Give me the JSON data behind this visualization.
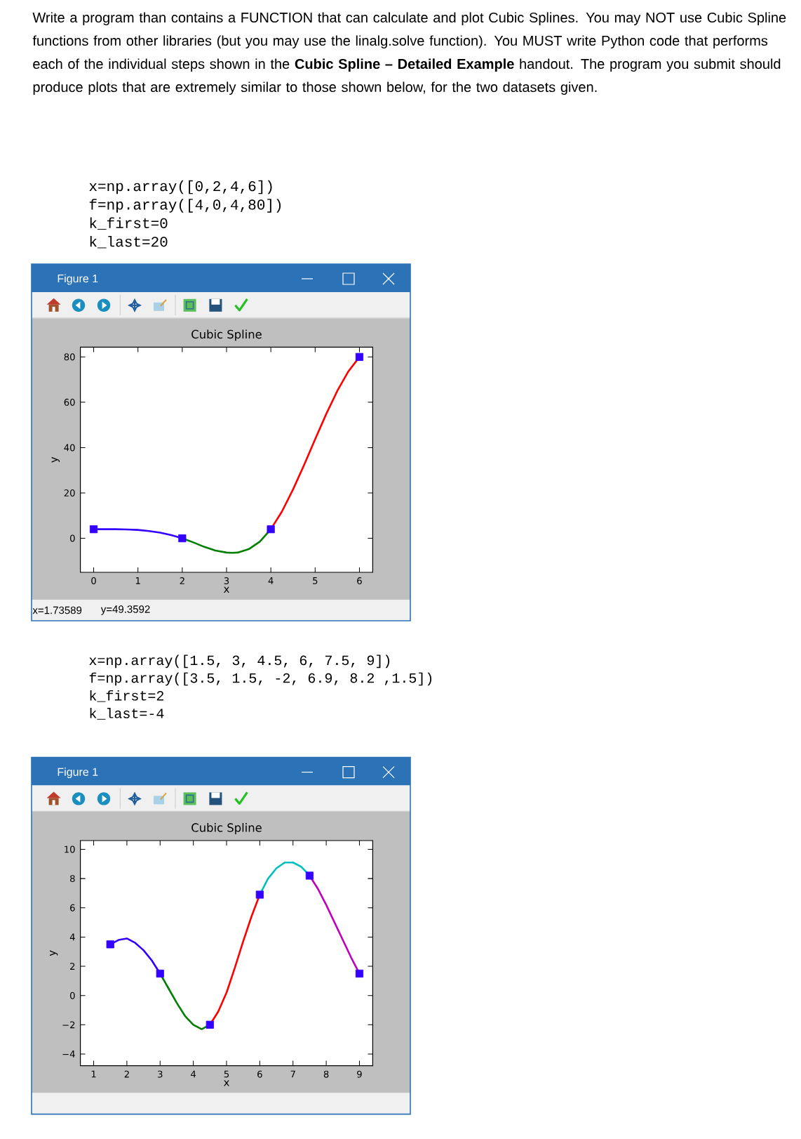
{
  "chart_data": [
    {
      "type": "line",
      "title": "Cubic Spline",
      "xlabel": "x",
      "ylabel": "y",
      "xlim": [
        -0.3,
        6.3
      ],
      "ylim": [
        -15,
        84.3
      ],
      "xticks": [
        0,
        1,
        2,
        3,
        4,
        5,
        6
      ],
      "yticks": [
        0,
        20,
        40,
        60,
        80
      ],
      "series": [
        {
          "type": "line",
          "color": "#3300ff",
          "x": [
            0,
            0.25,
            0.5,
            0.75,
            1,
            1.25,
            1.5,
            1.75,
            2
          ],
          "values": [
            4,
            4,
            4,
            3.9,
            3.7,
            3.2,
            2.5,
            1.4,
            0
          ]
        },
        {
          "type": "line",
          "color": "#008000",
          "x": [
            2,
            2.25,
            2.5,
            2.75,
            3,
            3.125,
            3.25,
            3.5,
            3.75,
            4
          ],
          "values": [
            0,
            -1.8,
            -3.8,
            -5.4,
            -6.3,
            -6.4,
            -6.3,
            -4.8,
            -1.5,
            4
          ]
        },
        {
          "type": "line",
          "color": "#ff0000",
          "x": [
            4,
            4.25,
            4.5,
            4.75,
            5,
            5.25,
            5.5,
            5.75,
            6
          ],
          "values": [
            4,
            11.8,
            21.5,
            32.3,
            43.7,
            54.8,
            65,
            73.6,
            80
          ]
        },
        {
          "type": "scatter",
          "color": "#3300ff",
          "marker": "square",
          "x": [
            0,
            2,
            4,
            6
          ],
          "values": [
            4,
            0,
            4,
            80
          ]
        }
      ],
      "annotations": [
        "Write a program than contains a FUNCTION that can calculate and plot Cubic Splines.  You may NOT use Cubic Spline functions from other libraries (but you may use the linalg.solve function).  You MUST write Python code that performs each of the individual steps shown in the **Cubic Spline – Detailed Example** handout.  The program you submit should produce plots that are extremely similar to those shown below, for the two datasets given.",
        "x=np.array([0,2,4,6])",
        "f=np.array([4,0,4,80])",
        "k_first=0",
        "k_last=20",
        "Figure 1",
        "x=1.73589",
        "y=49.3592"
      ]
    },
    {
      "type": "line",
      "title": "Cubic Spline",
      "xlabel": "x",
      "ylabel": "y",
      "xlim": [
        0.6,
        9.4
      ],
      "ylim": [
        -4.8,
        10.6
      ],
      "xticks": [
        1,
        2,
        3,
        4,
        5,
        6,
        7,
        8,
        9
      ],
      "yticks": [
        {
          "value": -4,
          "label": "−4"
        },
        {
          "value": -2,
          "label": "−2"
        },
        0,
        2,
        4,
        6,
        8,
        10
      ],
      "series": [
        {
          "type": "line",
          "color": "#3300ff",
          "x": [
            1.5,
            1.75,
            2,
            2.25,
            2.5,
            2.75,
            3
          ],
          "values": [
            3.5,
            3.8,
            3.9,
            3.6,
            3.1,
            2.4,
            1.5
          ]
        },
        {
          "type": "line",
          "color": "#008000",
          "x": [
            3,
            3.25,
            3.5,
            3.75,
            4,
            4.25,
            4.5
          ],
          "values": [
            1.5,
            0.5,
            -0.5,
            -1.4,
            -2,
            -2.3,
            -2
          ]
        },
        {
          "type": "line",
          "color": "#ff0000",
          "x": [
            4.5,
            4.75,
            5,
            5.25,
            5.5,
            5.75,
            6
          ],
          "values": [
            -2,
            -1.1,
            0.2,
            1.9,
            3.7,
            5.4,
            6.9
          ]
        },
        {
          "type": "line",
          "color": "#00bfbf",
          "x": [
            6,
            6.25,
            6.5,
            6.75,
            7,
            7.25,
            7.5
          ],
          "values": [
            6.9,
            8,
            8.7,
            9.1,
            9.1,
            8.8,
            8.2
          ]
        },
        {
          "type": "line",
          "color": "#bf00bf",
          "x": [
            7.5,
            7.75,
            8,
            8.25,
            8.5,
            8.75,
            9
          ],
          "values": [
            8.2,
            7.3,
            6.2,
            5,
            3.8,
            2.6,
            1.5
          ]
        },
        {
          "type": "scatter",
          "color": "#3300ff",
          "marker": "square",
          "x": [
            1.5,
            3,
            4.5,
            6,
            7.5,
            9
          ],
          "values": [
            3.5,
            1.5,
            -2,
            6.9,
            8.2,
            1.5
          ]
        }
      ],
      "annotations": [
        "x=np.array([1.5, 3, 4.5, 6, 7.5, 9])",
        "f=np.array([3.5, 1.5, -2, 6.9, 8.2 ,1.5])",
        "k_first=2",
        "k_last=-4",
        "Figure 1"
      ]
    }
  ]
}
